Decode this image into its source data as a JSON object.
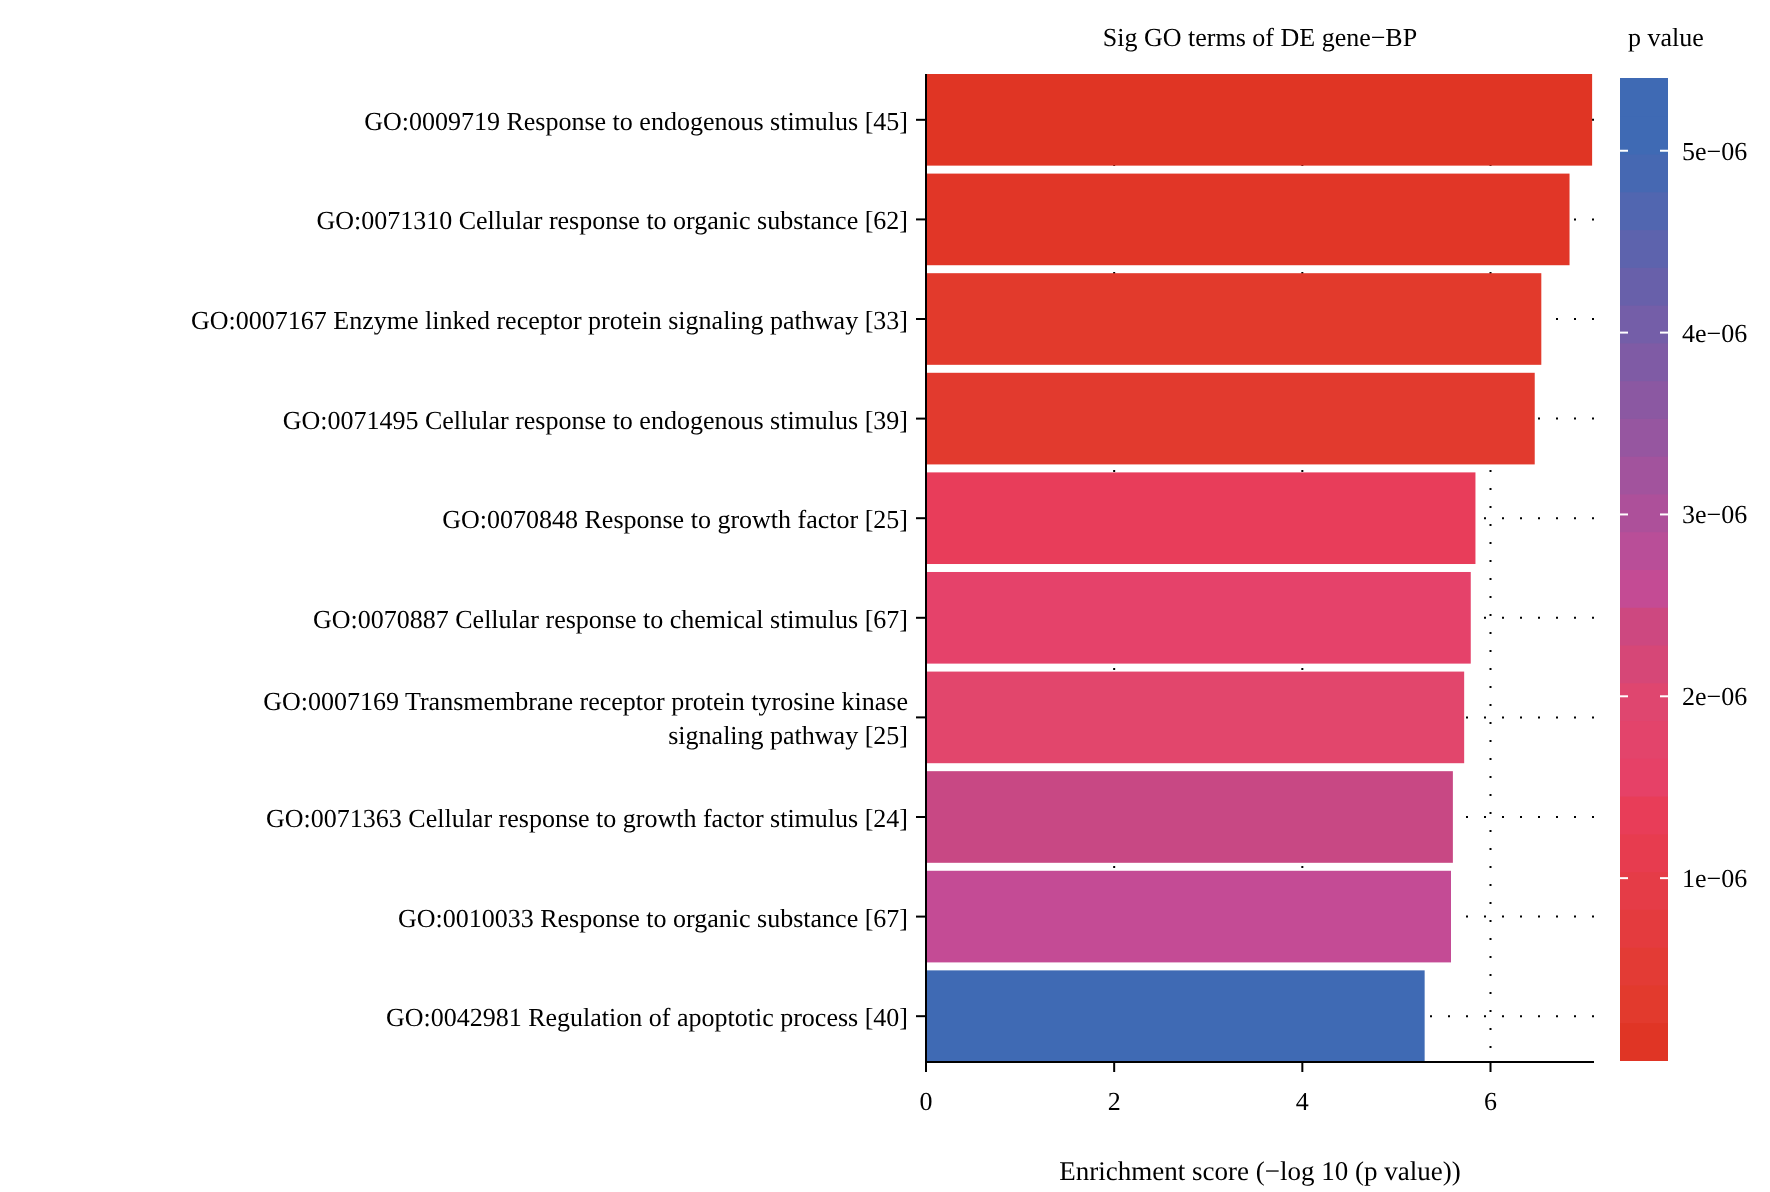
{
  "chart_data": {
    "type": "bar",
    "orientation": "horizontal",
    "title": "Sig GO terms of DE gene−BP",
    "xlabel": "Enrichment score (−log 10 (p value))",
    "clabel": "p value",
    "categories": [
      "GO:0009719 Response to endogenous stimulus [45]",
      "GO:0071310 Cellular response to organic substance [62]",
      "GO:0007167 Enzyme linked receptor protein signaling pathway [33]",
      "GO:0071495 Cellular response to endogenous stimulus [39]",
      "GO:0070848 Response to growth factor [25]",
      "GO:0070887 Cellular response to chemical stimulus [67]",
      "GO:0007169 Transmembrane receptor protein tyrosine kinase signaling pathway [25]",
      "GO:0071363 Cellular response to growth factor stimulus [24]",
      "GO:0010033 Response to organic substance [67]",
      "GO:0042981 Regulation of apoptotic process [40]"
    ],
    "values": [
      7.08,
      6.84,
      6.54,
      6.47,
      5.84,
      5.79,
      5.72,
      5.6,
      5.58,
      5.3
    ],
    "cvalues": [
      8e-08,
      1.4e-07,
      2.9e-07,
      3.4e-07,
      1.4e-06,
      1.6e-06,
      1.9e-06,
      2.5e-06,
      2.6e-06,
      5e-06
    ],
    "clim": [
      0,
      5.4e-06
    ],
    "cticks": [
      {
        "value": 1e-06,
        "label": "1e−06"
      },
      {
        "value": 2e-06,
        "label": "2e−06"
      },
      {
        "value": 3e-06,
        "label": "3e−06"
      },
      {
        "value": 4e-06,
        "label": "4e−06"
      },
      {
        "value": 5e-06,
        "label": "5e−06"
      }
    ],
    "colors": [
      "#e03524",
      "#e13627",
      "#e23a2c",
      "#e23a2e",
      "#e83d5a",
      "#e5426a",
      "#e2466c",
      "#c84884",
      "#c44b95",
      "#3f6ab4"
    ],
    "xlim": [
      0,
      7.1
    ],
    "xticks": [
      0,
      2,
      4,
      6
    ],
    "grid": true,
    "line_style": "dotted"
  }
}
